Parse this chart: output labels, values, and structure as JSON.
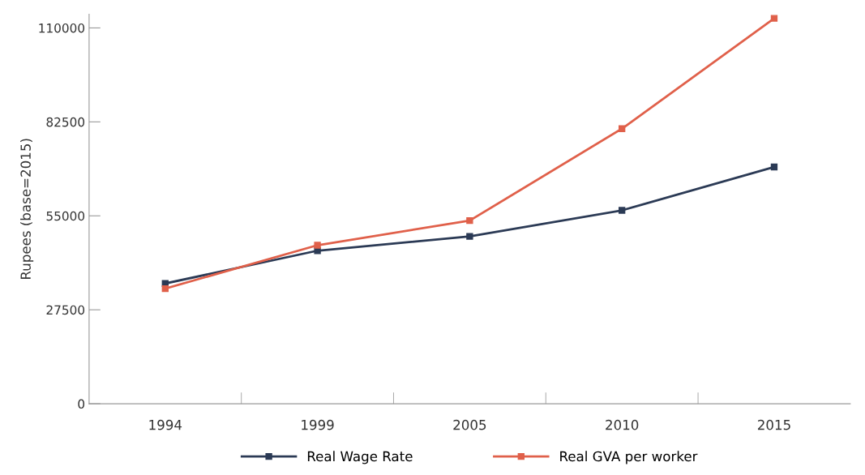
{
  "chart_data": {
    "type": "line",
    "ylabel": "Rupees (base=2015)",
    "categories": [
      "1994",
      "1999",
      "2005",
      "2010",
      "2015"
    ],
    "series": [
      {
        "name": "Real Wage Rate",
        "color": "#2b3a55",
        "values": [
          35200,
          44800,
          49000,
          56600,
          69300
        ]
      },
      {
        "name": "Real GVA per worker",
        "color": "#e0604a",
        "values": [
          33700,
          46400,
          53600,
          80500,
          112800
        ]
      }
    ],
    "ylim": [
      0,
      114000
    ],
    "yticks": [
      0,
      27500,
      55000,
      82500,
      110000
    ],
    "grid": false,
    "legend": "bottom",
    "marker": "square",
    "line_style": "solid"
  }
}
